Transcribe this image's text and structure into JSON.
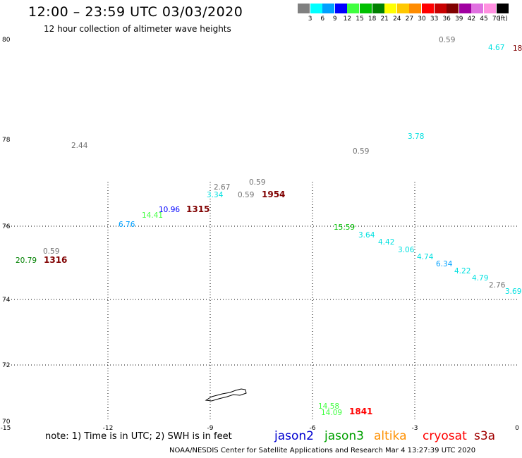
{
  "header": {
    "title": "12:00 – 23:59 UTC 03/03/2020",
    "subtitle": "12 hour collection of altimeter wave heights"
  },
  "color_scale": {
    "unit": "(ft)",
    "items": [
      {
        "label": "3",
        "color": "#808080"
      },
      {
        "label": "6",
        "color": "#00ffff"
      },
      {
        "label": "9",
        "color": "#00a0ff"
      },
      {
        "label": "12",
        "color": "#0000ff"
      },
      {
        "label": "15",
        "color": "#40ff40"
      },
      {
        "label": "18",
        "color": "#00c000"
      },
      {
        "label": "21",
        "color": "#008000"
      },
      {
        "label": "24",
        "color": "#ffff00"
      },
      {
        "label": "27",
        "color": "#ffc800"
      },
      {
        "label": "30",
        "color": "#ff8c00"
      },
      {
        "label": "33",
        "color": "#ff0000"
      },
      {
        "label": "36",
        "color": "#c80000"
      },
      {
        "label": "39",
        "color": "#800000"
      },
      {
        "label": "42",
        "color": "#a000a0"
      },
      {
        "label": "45",
        "color": "#e070e0"
      },
      {
        "label": "70",
        "color": "#ff90e0"
      },
      {
        "label": "",
        "color": "#000000"
      }
    ]
  },
  "axes": {
    "x_ticks": [
      "-15",
      "-12",
      "-9",
      "-6",
      "-3",
      "0"
    ],
    "y_ticks": [
      "80",
      "78",
      "76",
      "74",
      "72",
      "70"
    ]
  },
  "wave_heights": [
    {
      "text": "0.59",
      "color": "#707070"
    },
    {
      "text": "4.67",
      "color": "#00e0e0"
    },
    {
      "text": "18",
      "color": "#800000"
    },
    {
      "text": "3.78",
      "color": "#00e0e0"
    },
    {
      "text": "2.44",
      "color": "#707070"
    },
    {
      "text": "0.59",
      "color": "#707070"
    },
    {
      "text": "0.59",
      "color": "#707070"
    },
    {
      "text": "2.67",
      "color": "#707070"
    },
    {
      "text": "3.34",
      "color": "#00e0e0"
    },
    {
      "text": "0.59",
      "color": "#707070"
    },
    {
      "text": "10.96",
      "color": "#0000ff"
    },
    {
      "text": "14.41",
      "color": "#40ff40"
    },
    {
      "text": "6.76",
      "color": "#00a0ff"
    },
    {
      "text": "15.59",
      "color": "#00c000"
    },
    {
      "text": "3.64",
      "color": "#00e0e0"
    },
    {
      "text": "4.42",
      "color": "#00e0e0"
    },
    {
      "text": "3.06",
      "color": "#00e0e0"
    },
    {
      "text": "4.74",
      "color": "#00e0e0"
    },
    {
      "text": "6.34",
      "color": "#00a0ff"
    },
    {
      "text": "4.22",
      "color": "#00e0e0"
    },
    {
      "text": "4.79",
      "color": "#00e0e0"
    },
    {
      "text": "2.76",
      "color": "#707070"
    },
    {
      "text": "3.69",
      "color": "#00e0e0"
    },
    {
      "text": "0.59",
      "color": "#707070"
    },
    {
      "text": "20.79",
      "color": "#008000"
    },
    {
      "text": "14.58",
      "color": "#40ff40"
    },
    {
      "text": "14.09",
      "color": "#40ff40"
    }
  ],
  "pass_times": [
    {
      "text": "1954",
      "color": "#800000"
    },
    {
      "text": "1315",
      "color": "#800000"
    },
    {
      "text": "1316",
      "color": "#800000"
    },
    {
      "text": "1841",
      "color": "#ff0000"
    }
  ],
  "footer": {
    "note": "note:  1) Time is in UTC;  2) SWH is in feet",
    "legend": [
      {
        "label": "jason2",
        "color": "#0000d0"
      },
      {
        "label": "jason3",
        "color": "#00a000"
      },
      {
        "label": "altika",
        "color": "#ff9000"
      },
      {
        "label": "cryosat",
        "color": "#ff0000"
      },
      {
        "label": "s3a",
        "color": "#a00000"
      }
    ],
    "credit": "NOAA/NESDIS Center for Satellite Applications and Research    Mar  4 13:27:39 UTC 2020"
  }
}
